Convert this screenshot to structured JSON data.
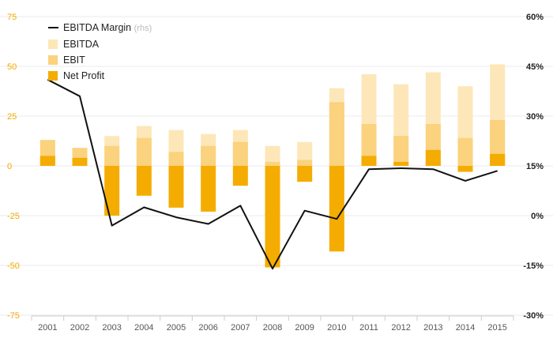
{
  "chart_data": {
    "type": "bar",
    "categories": [
      "2001",
      "2002",
      "2003",
      "2004",
      "2005",
      "2006",
      "2007",
      "2008",
      "2009",
      "2010",
      "2011",
      "2012",
      "2013",
      "2014",
      "2015"
    ],
    "series": [
      {
        "name": "EBITDA",
        "axis": "left",
        "color": "#fde7b8",
        "values": [
          13,
          9,
          15,
          20,
          18,
          16,
          18,
          10,
          12,
          39,
          46,
          41,
          47,
          40,
          51
        ]
      },
      {
        "name": "EBIT",
        "axis": "left",
        "color": "#fbd27d",
        "values": [
          13,
          9,
          10,
          14,
          7,
          10,
          12,
          2,
          3,
          32,
          21,
          15,
          21,
          14,
          23
        ]
      },
      {
        "name": "Net Profit",
        "axis": "left",
        "color": "#f5ac00",
        "values": [
          5,
          4,
          -25,
          -15,
          -21,
          -23,
          -10,
          -51,
          -8,
          -43,
          5,
          2,
          8,
          -3,
          6
        ]
      },
      {
        "name": "EBITDA Margin",
        "name_suffix": "(rhs)",
        "type": "line",
        "axis": "right",
        "color": "#111111",
        "values": [
          41,
          36,
          -3,
          2.5,
          -0.5,
          -2.5,
          3,
          -16,
          1.5,
          -1,
          14,
          14.3,
          14,
          10.5,
          13.5
        ]
      }
    ],
    "y_left": {
      "ylim": [
        -75,
        75
      ],
      "ticks": [
        75,
        50,
        25,
        0,
        -25,
        -50,
        -75
      ]
    },
    "y_right": {
      "ylim": [
        -30,
        60
      ],
      "ticks": [
        "60%",
        "45%",
        "30%",
        "15%",
        "0%",
        "-15%",
        "-30%"
      ]
    },
    "legend_position": "top-left",
    "grid": true,
    "colors": {
      "left_axis_text": "#f2a900",
      "right_axis_text": "#222222",
      "gridline": "#ebebeb"
    }
  }
}
